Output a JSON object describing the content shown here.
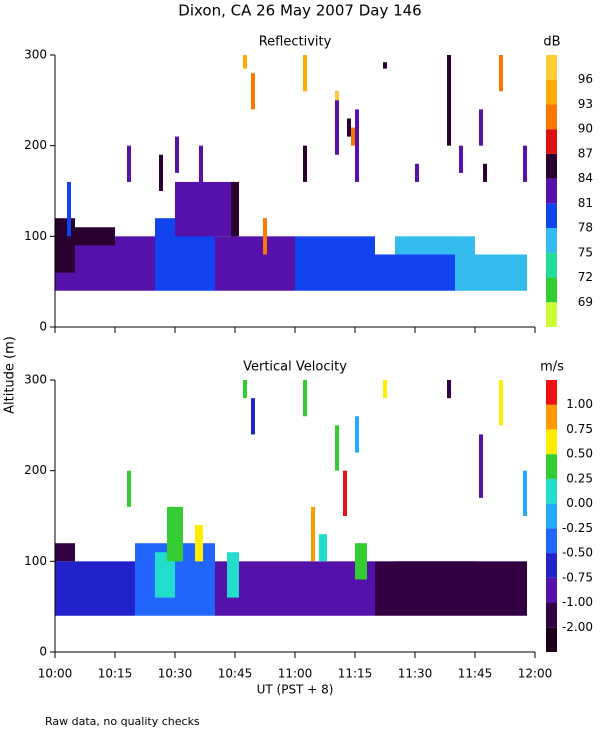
{
  "title": "Dixon, CA 26 May 2007  Day 146",
  "ylabel": "Altitude (m)",
  "footnote": "Raw data, no quality checks",
  "chart_data": [
    {
      "type": "time-height",
      "title": "Reflectivity",
      "ylim": [
        0,
        300
      ],
      "yticks": [
        0,
        100,
        200,
        300
      ],
      "colorbar": {
        "label": "dB",
        "ticks": [
          69,
          72,
          75,
          78,
          81,
          84,
          87,
          90,
          93,
          96
        ],
        "colors": [
          "#ccff33",
          "#33cc33",
          "#22dd99",
          "#33bbee",
          "#1144ee",
          "#5511aa",
          "#2a0030",
          "#dd1111",
          "#ff7700",
          "#ffaa00",
          "#ffcc33"
        ]
      },
      "segments": {
        "x0": [
          "10:00",
          "10:25",
          "10:40",
          "11:00",
          "11:20",
          "11:40",
          "10:00",
          "10:03",
          "10:18",
          "10:26",
          "10:30",
          "10:36",
          "10:47",
          "10:49",
          "10:52",
          "11:02",
          "11:02",
          "11:10",
          "11:10",
          "11:13",
          "11:14",
          "11:15",
          "11:22",
          "11:30",
          "11:38",
          "11:41",
          "11:46",
          "11:47",
          "11:51",
          "11:57",
          "11:25",
          "10:30",
          "10:44",
          "10:05"
        ],
        "x1": [
          "10:25",
          "10:40",
          "11:00",
          "11:20",
          "11:40",
          "11:58",
          "10:05",
          "10:04",
          "10:19",
          "10:27",
          "10:31",
          "10:37",
          "10:48",
          "10:50",
          "10:53",
          "11:03",
          "11:03",
          "11:11",
          "11:11",
          "11:14",
          "11:15",
          "11:16",
          "11:23",
          "11:31",
          "11:39",
          "11:42",
          "11:47",
          "11:48",
          "11:52",
          "11:58",
          "11:45",
          "10:45",
          "10:46",
          "10:15"
        ],
        "y0": [
          40,
          40,
          40,
          40,
          40,
          40,
          60,
          100,
          160,
          150,
          170,
          150,
          285,
          240,
          80,
          260,
          160,
          190,
          250,
          210,
          200,
          160,
          285,
          160,
          200,
          170,
          200,
          160,
          260,
          160,
          80,
          100,
          100,
          90
        ],
        "y1": [
          100,
          120,
          100,
          100,
          80,
          80,
          120,
          160,
          200,
          190,
          210,
          200,
          300,
          280,
          120,
          300,
          200,
          260,
          260,
          230,
          220,
          240,
          292,
          180,
          300,
          200,
          240,
          180,
          300,
          200,
          100,
          160,
          160,
          110
        ],
        "values": [
          82,
          79,
          82,
          79,
          79,
          76,
          85,
          79,
          82,
          85,
          82,
          82,
          94,
          91,
          91,
          94,
          85,
          82,
          97,
          85,
          91,
          82,
          85,
          82,
          85,
          82,
          82,
          85,
          91,
          82,
          76,
          82,
          85,
          85
        ]
      }
    },
    {
      "type": "time-height",
      "title": "Vertical Velocity",
      "ylim": [
        0,
        300
      ],
      "yticks": [
        0,
        100,
        200,
        300
      ],
      "xlim": [
        "10:00",
        "12:00"
      ],
      "xticks": [
        "10:00",
        "10:15",
        "10:30",
        "10:45",
        "11:00",
        "11:15",
        "11:30",
        "11:45",
        "12:00"
      ],
      "xlabel": "UT  (PST + 8)",
      "colorbar": {
        "label": "m/s",
        "ticks": [
          {
            "value": -2,
            "label": "-2.00"
          },
          {
            "value": -1,
            "label": "-1.00"
          },
          {
            "value": -0.75,
            "label": "-0.75"
          },
          {
            "value": -0.5,
            "label": "-0.50"
          },
          {
            "value": -0.25,
            "label": "-0.25"
          },
          {
            "value": 0,
            "label": "0.00"
          },
          {
            "value": 0.25,
            "label": "0.25"
          },
          {
            "value": 0.5,
            "label": "0.50"
          },
          {
            "value": 0.75,
            "label": "0.75"
          },
          {
            "value": 1,
            "label": "1.00"
          }
        ],
        "colors": [
          "#1a001a",
          "#330044",
          "#5511aa",
          "#2222cc",
          "#2266ff",
          "#22aaff",
          "#22ddcc",
          "#33cc33",
          "#ffee00",
          "#ff9900",
          "#ee1111"
        ]
      },
      "segments": {
        "x0": [
          "10:00",
          "10:20",
          "10:40",
          "11:00",
          "11:20",
          "10:25",
          "10:28",
          "10:35",
          "10:18",
          "10:43",
          "10:47",
          "10:49",
          "11:02",
          "11:04",
          "11:06",
          "11:10",
          "11:12",
          "11:15",
          "11:15",
          "11:22",
          "11:38",
          "11:46",
          "11:51",
          "11:57",
          "11:25",
          "10:00"
        ],
        "x1": [
          "10:20",
          "10:40",
          "11:00",
          "11:20",
          "11:58",
          "10:30",
          "10:32",
          "10:37",
          "10:19",
          "10:46",
          "10:48",
          "10:50",
          "11:03",
          "11:05",
          "11:08",
          "11:11",
          "11:13",
          "11:16",
          "11:18",
          "11:23",
          "11:39",
          "11:47",
          "11:52",
          "11:58",
          "11:45",
          "10:05"
        ],
        "y0": [
          40,
          40,
          40,
          40,
          40,
          60,
          100,
          100,
          160,
          60,
          280,
          240,
          260,
          100,
          100,
          200,
          150,
          220,
          80,
          280,
          280,
          170,
          250,
          150,
          60,
          100
        ],
        "y1": [
          100,
          120,
          100,
          100,
          100,
          110,
          160,
          140,
          200,
          110,
          300,
          280,
          300,
          160,
          130,
          250,
          200,
          260,
          120,
          300,
          300,
          240,
          300,
          200,
          100,
          120
        ],
        "values": [
          -0.6,
          -0.3,
          -0.8,
          -0.9,
          -1.5,
          0.1,
          0.4,
          0.6,
          0.4,
          0.2,
          0.4,
          -0.6,
          0.4,
          0.9,
          0.1,
          0.3,
          1.1,
          -0.1,
          0.3,
          0.6,
          -1.5,
          -0.9,
          0.6,
          -0.1,
          -1.5,
          -1.2
        ]
      }
    }
  ]
}
